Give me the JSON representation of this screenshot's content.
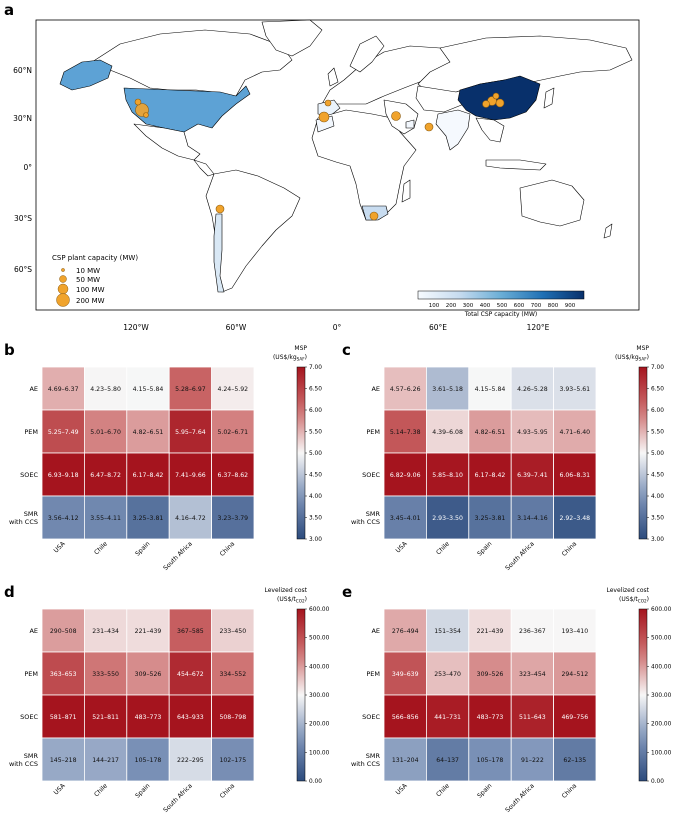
{
  "panel_letters": {
    "a": "a",
    "b": "b",
    "c": "c",
    "d": "d",
    "e": "e"
  },
  "map": {
    "lat_ticks": [
      "60°N",
      "30°N",
      "0°",
      "30°S",
      "60°S"
    ],
    "lon_ticks": [
      "120°W",
      "60°W",
      "0°",
      "60°E",
      "120°E"
    ],
    "size_legend": {
      "title": "CSP plant capacity (MW)",
      "items": [
        "10 MW",
        "50 MW",
        "100 MW",
        "200 MW"
      ],
      "values_mw": [
        10,
        50,
        100,
        200
      ]
    },
    "colorbar": {
      "label": "Total CSP capacity (MW)",
      "ticks": [
        "100",
        "200",
        "300",
        "400",
        "500",
        "600",
        "700",
        "800",
        "900"
      ]
    },
    "country_fill_colors": {
      "USA": "#5da2d5",
      "China": "#08306b",
      "Chile": "#d9e8f5",
      "South Africa": "#c8dcf0",
      "Spain": "#eaf3fb",
      "Morocco": "#f2f7fd",
      "UAE": "#f2f7fd",
      "India": "#f5f9fe"
    },
    "plant_color": "#f0a32c"
  },
  "chart_data": [
    {
      "type": "heatmap",
      "panel": "b",
      "rows": [
        "AE",
        "PEM",
        "SOEC",
        "SMR\nwith CCS"
      ],
      "columns": [
        "USA",
        "Chile",
        "Spain",
        "South Africa",
        "China"
      ],
      "cells": [
        [
          "4.69–6.37",
          "4.23–5.80",
          "4.15–5.84",
          "5.28–6.97",
          "4.24–5.92"
        ],
        [
          "5.25–7.49",
          "5.01–6.70",
          "4.82–6.51",
          "5.95–7.64",
          "5.02–6.71"
        ],
        [
          "6.93–9.18",
          "6.47–8.72",
          "6.17–8.42",
          "7.41–9.66",
          "6.37–8.62"
        ],
        [
          "3.56–4.12",
          "3.55–4.11",
          "3.25–3.81",
          "4.16–4.72",
          "3.23–3.79"
        ]
      ],
      "colorbar_title": "MSP",
      "colorbar_unit": "(US$/kg",
      "colorbar_unit_sub": "SAF",
      "colorbar_unit_end": ")",
      "vmin": 3.0,
      "vmax": 7.0,
      "ticks": [
        "3.00",
        "3.50",
        "4.00",
        "4.50",
        "5.00",
        "5.50",
        "6.00",
        "6.50",
        "7.00"
      ]
    },
    {
      "type": "heatmap",
      "panel": "c",
      "rows": [
        "AE",
        "PEM",
        "SOEC",
        "SMR\nwith CCS"
      ],
      "columns": [
        "USA",
        "Chile",
        "Spain",
        "South Africa",
        "China"
      ],
      "cells": [
        [
          "4.57–6.26",
          "3.61–5.18",
          "4.15–5.84",
          "4.26–5.28",
          "3.93–5.61"
        ],
        [
          "5.14–7.38",
          "4.39–6.08",
          "4.82–6.51",
          "4.93–5.95",
          "4.71–6.40"
        ],
        [
          "6.82–9.06",
          "5.85–8.10",
          "6.17–8.42",
          "6.39–7.41",
          "6.06–8.31"
        ],
        [
          "3.45–4.01",
          "2.93–3.50",
          "3.25–3.81",
          "3.14–4.16",
          "2.92–3.48"
        ]
      ],
      "colorbar_title": "MSP",
      "colorbar_unit": "(US$/kg",
      "colorbar_unit_sub": "SAF",
      "colorbar_unit_end": ")",
      "vmin": 3.0,
      "vmax": 7.0,
      "ticks": [
        "3.00",
        "3.50",
        "4.00",
        "4.50",
        "5.00",
        "5.50",
        "6.00",
        "6.50",
        "7.00"
      ]
    },
    {
      "type": "heatmap",
      "panel": "d",
      "rows": [
        "AE",
        "PEM",
        "SOEC",
        "SMR\nwith CCS"
      ],
      "columns": [
        "USA",
        "Chile",
        "Spain",
        "South Africa",
        "China"
      ],
      "cells": [
        [
          "290–508",
          "231–434",
          "221–439",
          "367–585",
          "233–450"
        ],
        [
          "363–653",
          "333–550",
          "309–526",
          "454–672",
          "334–552"
        ],
        [
          "581–871",
          "521–811",
          "483–773",
          "643–933",
          "508–798"
        ],
        [
          "145–218",
          "144–217",
          "105–178",
          "222–295",
          "102–175"
        ]
      ],
      "colorbar_title": "Levelized cost",
      "colorbar_unit": "(US$/t",
      "colorbar_unit_sub": "CO2",
      "colorbar_unit_end": ")",
      "vmin": 0,
      "vmax": 600,
      "ticks": [
        "0.00",
        "100.00",
        "200.00",
        "300.00",
        "400.00",
        "500.00",
        "600.00"
      ]
    },
    {
      "type": "heatmap",
      "panel": "e",
      "rows": [
        "AE",
        "PEM",
        "SOEC",
        "SMR\nwith CCS"
      ],
      "columns": [
        "USA",
        "Chile",
        "Spain",
        "South Africa",
        "China"
      ],
      "cells": [
        [
          "276–494",
          "151–354",
          "221–439",
          "236–367",
          "193–410"
        ],
        [
          "349–639",
          "253–470",
          "309–526",
          "323–454",
          "294–512"
        ],
        [
          "566–856",
          "441–731",
          "483–773",
          "511–643",
          "469–756"
        ],
        [
          "131–204",
          "64–137",
          "105–178",
          "91–222",
          "62–135"
        ]
      ],
      "colorbar_title": "Levelized cost",
      "colorbar_unit": "(US$/t",
      "colorbar_unit_sub": "CO2",
      "colorbar_unit_end": ")",
      "vmin": 0,
      "vmax": 600,
      "ticks": [
        "0.00",
        "100.00",
        "200.00",
        "300.00",
        "400.00",
        "500.00",
        "600.00"
      ]
    }
  ]
}
